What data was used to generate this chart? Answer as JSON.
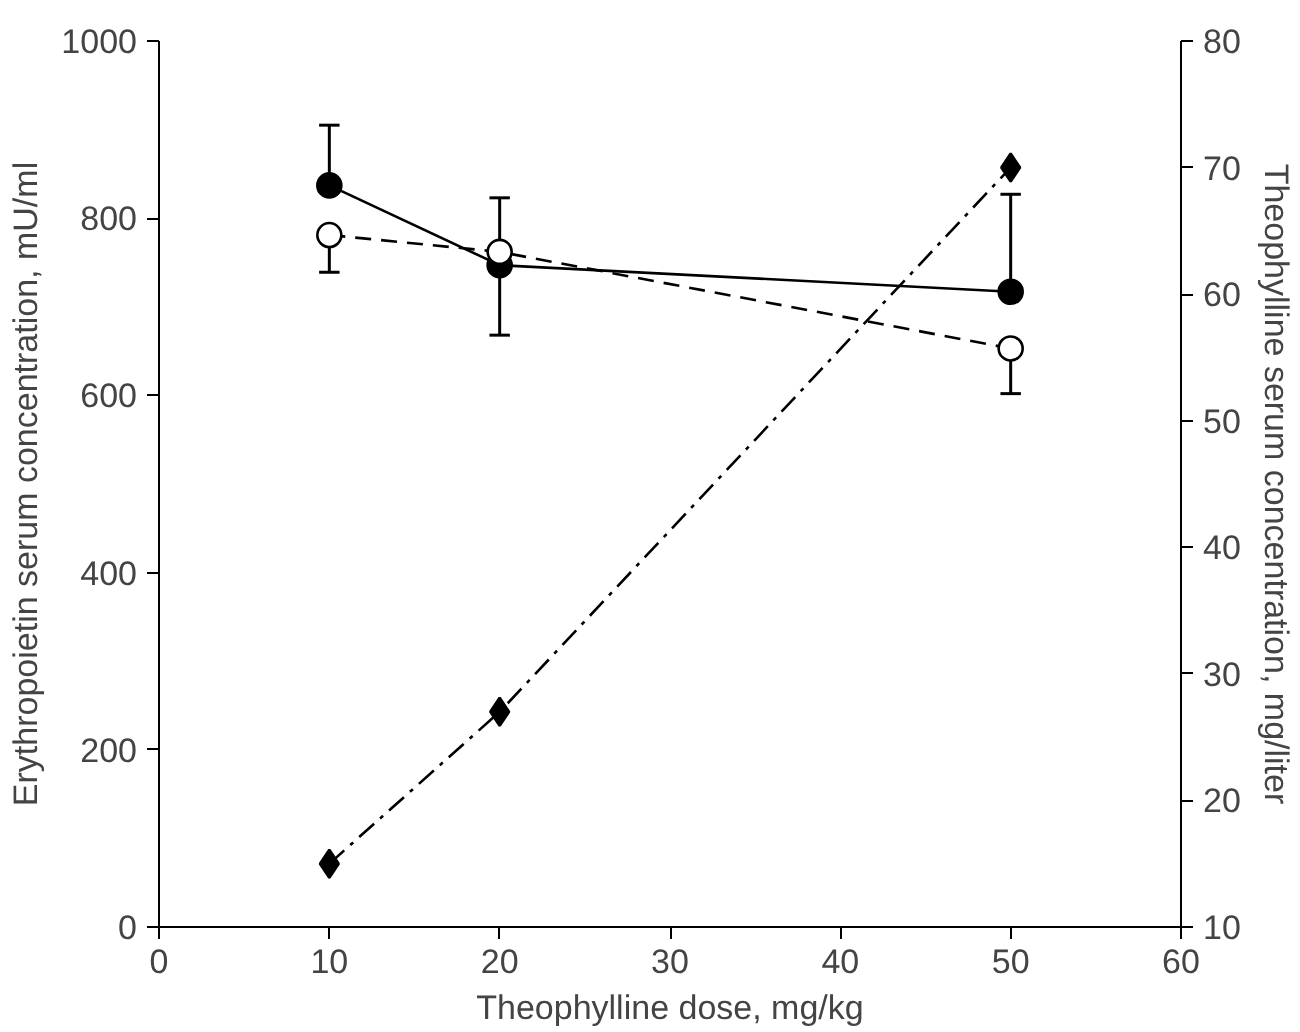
{
  "chart_data": {
    "type": "line",
    "xlabel": "Theophylline dose, mg/kg",
    "ylabel": "Erythropoietin serum concentration, mU/ml",
    "y2label": "Theophylline serum concentration, mg/liter",
    "x": [
      10,
      20,
      50
    ],
    "series": [
      {
        "color": "#000000",
        "values": [
          837,
          747,
          717
        ],
        "errors": [
          [
            837,
            905
          ],
          [
            668,
            823
          ],
          [
            717,
            827
          ]
        ],
        "marker": "circle",
        "line_style": "solid"
      },
      {
        "color": "#000000",
        "values": [
          781,
          762,
          653
        ],
        "errors": [
          [
            739,
            781
          ],
          null,
          [
            602,
            653
          ]
        ],
        "marker": "circle_open",
        "line_style": "dashed"
      },
      {
        "color": "#000000",
        "values": [
          15,
          27,
          70
        ],
        "axis": "y2",
        "marker": "diamond",
        "line_style": "dashdot"
      }
    ],
    "xlim": [
      0,
      60
    ],
    "xticks": [
      0,
      10,
      20,
      30,
      40,
      50,
      60
    ],
    "ylim": [
      0,
      1000
    ],
    "yticks": [
      0,
      200,
      400,
      600,
      800,
      1000
    ],
    "y2lim": [
      10,
      80
    ],
    "y2ticks": [
      10,
      20,
      30,
      40,
      50,
      60,
      70,
      80
    ],
    "grid": false
  }
}
